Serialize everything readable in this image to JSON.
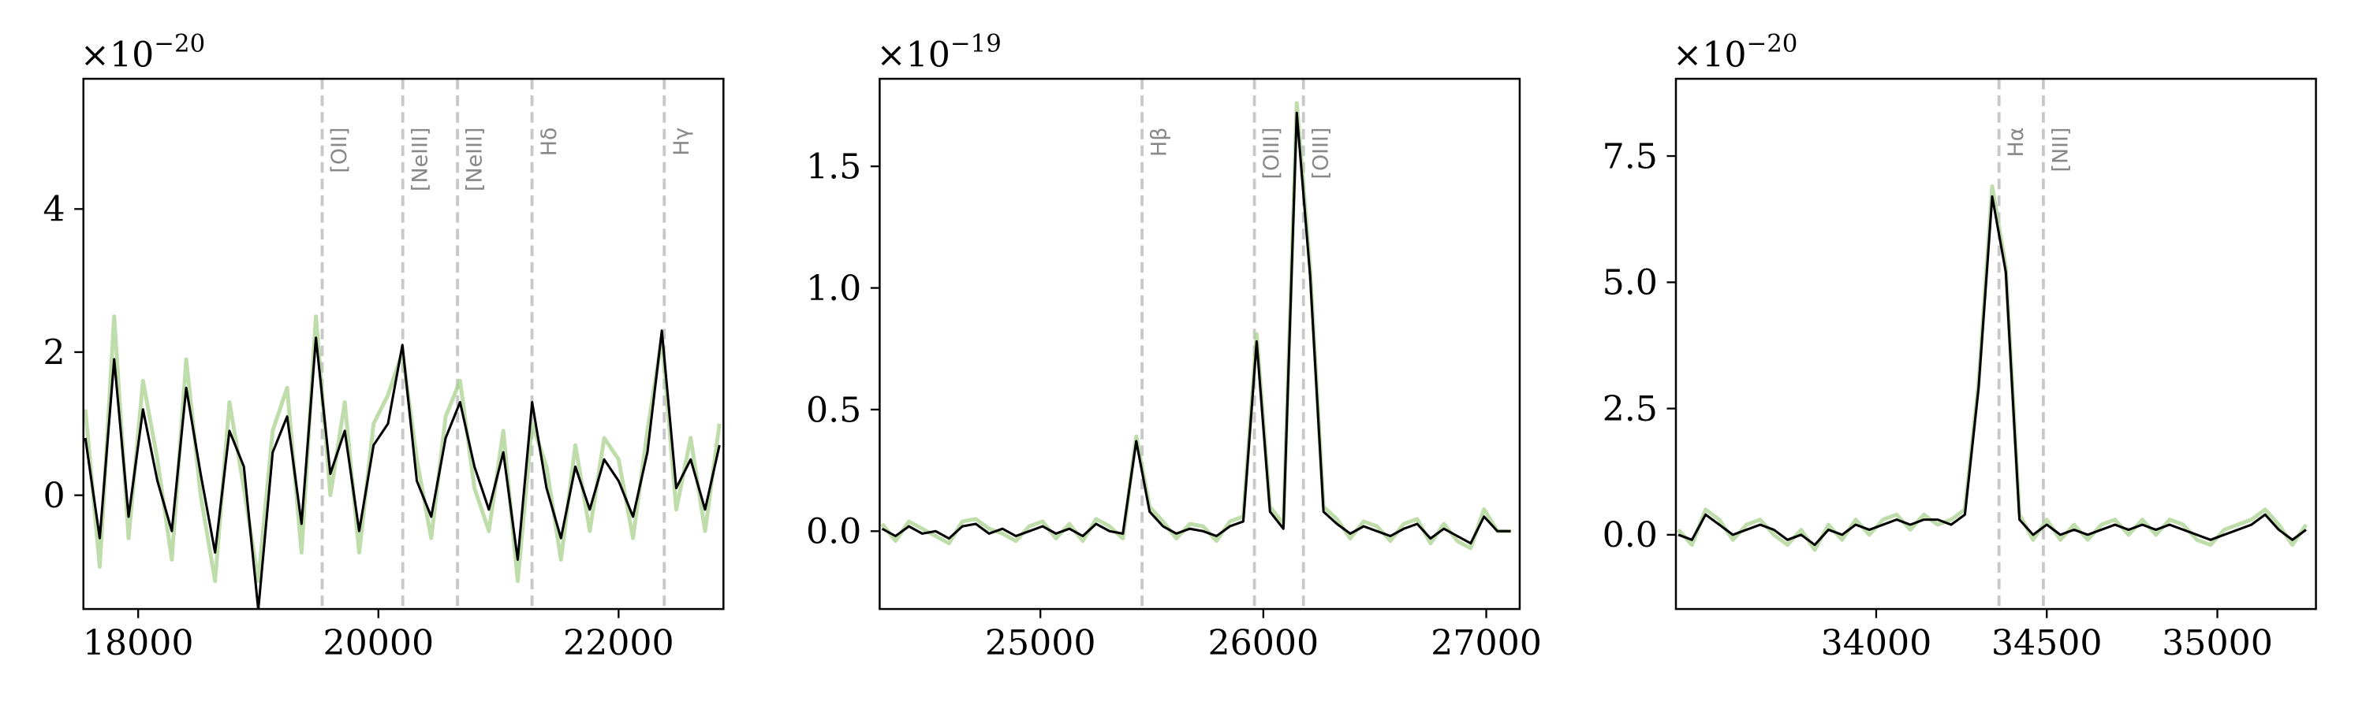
{
  "chart_data": [
    {
      "type": "line",
      "x": [
        17560,
        17680,
        17800,
        17920,
        18040,
        18160,
        18280,
        18400,
        18520,
        18640,
        18760,
        18880,
        19000,
        19120,
        19240,
        19360,
        19480,
        19600,
        19720,
        19840,
        19960,
        20080,
        20200,
        20320,
        20440,
        20560,
        20680,
        20800,
        20920,
        21040,
        21160,
        21280,
        21400,
        21520,
        21640,
        21760,
        21880,
        22000,
        22120,
        22240,
        22360,
        22480,
        22600,
        22720,
        22840
      ],
      "series": [
        {
          "color": "#a9d18e",
          "values": [
            1.2,
            -1.0,
            2.5,
            -0.6,
            1.6,
            0.5,
            -0.9,
            1.9,
            0.0,
            -1.2,
            1.3,
            0.1,
            -1.2,
            0.9,
            1.5,
            -0.8,
            2.5,
            0.0,
            1.3,
            -0.8,
            1.0,
            1.4,
            2.0,
            0.5,
            -0.6,
            1.1,
            1.6,
            0.1,
            -0.5,
            0.9,
            -1.2,
            1.0,
            0.4,
            -0.9,
            0.7,
            -0.5,
            0.8,
            0.5,
            -0.6,
            0.9,
            2.2,
            -0.2,
            0.8,
            -0.5,
            1.0
          ]
        },
        {
          "color": "#000000",
          "values": [
            0.8,
            -0.6,
            1.9,
            -0.3,
            1.2,
            0.2,
            -0.5,
            1.5,
            0.3,
            -0.8,
            0.9,
            0.4,
            -1.6,
            0.6,
            1.1,
            -0.4,
            2.2,
            0.3,
            0.9,
            -0.5,
            0.7,
            1.0,
            2.1,
            0.2,
            -0.3,
            0.8,
            1.3,
            0.4,
            -0.2,
            0.6,
            -0.9,
            1.3,
            0.1,
            -0.6,
            0.4,
            -0.2,
            0.5,
            0.2,
            -0.3,
            0.6,
            2.3,
            0.1,
            0.5,
            -0.2,
            0.7
          ]
        }
      ],
      "xlim": [
        17544,
        22873
      ],
      "ylim": [
        -1.59,
        5.82
      ],
      "xticks": [
        18000,
        20000,
        22000
      ],
      "yticks": [
        0,
        2,
        4
      ],
      "y_offset": {
        "base": "×10",
        "exponent": "−20"
      },
      "annotations": [
        {
          "x": 19532,
          "label": "[OII]"
        },
        {
          "x": 20203,
          "label": "[NeIII]"
        },
        {
          "x": 20659,
          "label": "[NeIII]"
        },
        {
          "x": 21279,
          "label": "Hδ"
        },
        {
          "x": 22380,
          "label": "Hγ"
        }
      ]
    },
    {
      "type": "line",
      "x": [
        24290,
        24350,
        24410,
        24470,
        24530,
        24590,
        24650,
        24710,
        24770,
        24830,
        24890,
        24950,
        25010,
        25070,
        25130,
        25190,
        25250,
        25310,
        25370,
        25430,
        25490,
        25550,
        25610,
        25670,
        25730,
        25790,
        25850,
        25910,
        25970,
        26030,
        26090,
        26150,
        26210,
        26270,
        26330,
        26390,
        26450,
        26510,
        26570,
        26630,
        26690,
        26750,
        26810,
        26870,
        26930,
        26990,
        27050,
        27110
      ],
      "series": [
        {
          "color": "#a9d18e",
          "values": [
            0.03,
            -0.04,
            0.04,
            0.01,
            -0.02,
            -0.05,
            0.04,
            0.05,
            0.01,
            -0.01,
            -0.04,
            0.02,
            0.04,
            -0.03,
            0.03,
            -0.04,
            0.05,
            0.02,
            -0.03,
            0.39,
            0.1,
            0.04,
            -0.03,
            0.03,
            0.02,
            -0.04,
            0.04,
            0.06,
            0.81,
            0.1,
            0.03,
            1.76,
            1.08,
            0.1,
            0.05,
            -0.03,
            0.04,
            0.02,
            -0.04,
            0.03,
            0.05,
            -0.05,
            0.03,
            -0.04,
            -0.07,
            0.09,
            0.0,
            0.0
          ]
        },
        {
          "color": "#000000",
          "values": [
            0.01,
            -0.02,
            0.02,
            -0.01,
            0.0,
            -0.03,
            0.02,
            0.03,
            -0.01,
            0.01,
            -0.02,
            0.0,
            0.02,
            -0.01,
            0.01,
            -0.02,
            0.03,
            0.0,
            -0.01,
            0.37,
            0.08,
            0.02,
            -0.01,
            0.01,
            0.0,
            -0.02,
            0.02,
            0.04,
            0.78,
            0.08,
            0.01,
            1.72,
            1.05,
            0.08,
            0.03,
            -0.01,
            0.02,
            0.0,
            -0.02,
            0.01,
            0.03,
            -0.03,
            0.01,
            -0.02,
            -0.05,
            0.06,
            0.0,
            0.0
          ]
        }
      ],
      "xlim": [
        24279,
        27150
      ],
      "ylim": [
        -0.32,
        1.86
      ],
      "xticks": [
        25000,
        26000,
        27000
      ],
      "yticks": [
        {
          "value": 0,
          "label": "0.0"
        },
        0.5,
        {
          "value": 1,
          "label": "1.0"
        },
        1.5
      ],
      "y_offset": {
        "base": "×10",
        "exponent": "−19"
      },
      "annotations": [
        {
          "x": 25456,
          "label": "Hβ"
        },
        {
          "x": 25960,
          "label": "[OIII]"
        },
        {
          "x": 26180,
          "label": "[OIII]"
        }
      ]
    },
    {
      "type": "line",
      "x": [
        33420,
        33460,
        33500,
        33540,
        33580,
        33620,
        33660,
        33700,
        33740,
        33780,
        33820,
        33860,
        33900,
        33940,
        33980,
        34020,
        34060,
        34100,
        34140,
        34180,
        34220,
        34260,
        34300,
        34340,
        34380,
        34420,
        34460,
        34500,
        34540,
        34580,
        34620,
        34660,
        34700,
        34740,
        34780,
        34820,
        34860,
        34900,
        34940,
        34980,
        35020,
        35060,
        35100,
        35140,
        35180,
        35220,
        35260
      ],
      "series": [
        {
          "color": "#a9d18e",
          "values": [
            0.1,
            -0.2,
            0.5,
            0.3,
            -0.1,
            0.2,
            0.3,
            0.0,
            -0.2,
            0.1,
            -0.3,
            0.2,
            -0.1,
            0.3,
            0.0,
            0.3,
            0.4,
            0.1,
            0.4,
            0.2,
            0.3,
            0.5,
            3.0,
            6.9,
            5.3,
            0.4,
            -0.1,
            0.3,
            -0.1,
            0.2,
            -0.1,
            0.2,
            0.3,
            0.0,
            0.3,
            0.0,
            0.3,
            0.2,
            -0.1,
            -0.2,
            0.1,
            0.2,
            0.3,
            0.5,
            0.2,
            -0.2,
            0.2
          ]
        },
        {
          "color": "#000000",
          "values": [
            0.0,
            -0.1,
            0.4,
            0.2,
            0.0,
            0.1,
            0.2,
            0.1,
            -0.1,
            0.0,
            -0.2,
            0.1,
            0.0,
            0.2,
            0.1,
            0.2,
            0.3,
            0.2,
            0.3,
            0.3,
            0.2,
            0.4,
            2.9,
            6.7,
            5.2,
            0.3,
            0.0,
            0.2,
            0.0,
            0.1,
            0.0,
            0.1,
            0.2,
            0.1,
            0.2,
            0.1,
            0.2,
            0.1,
            0.0,
            -0.1,
            0.0,
            0.1,
            0.2,
            0.4,
            0.1,
            -0.1,
            0.1
          ]
        }
      ],
      "xlim": [
        33413,
        35289
      ],
      "ylim": [
        -1.47,
        9.03
      ],
      "xticks": [
        34000,
        34500,
        35000
      ],
      "yticks": [
        {
          "value": 0,
          "label": "0.0"
        },
        2.5,
        {
          "value": 5,
          "label": "5.0"
        },
        7.5
      ],
      "y_offset": {
        "base": "×10",
        "exponent": "−20"
      },
      "annotations": [
        {
          "x": 34360,
          "label": "Hα"
        },
        {
          "x": 34490,
          "label": "[NII]"
        }
      ]
    }
  ]
}
